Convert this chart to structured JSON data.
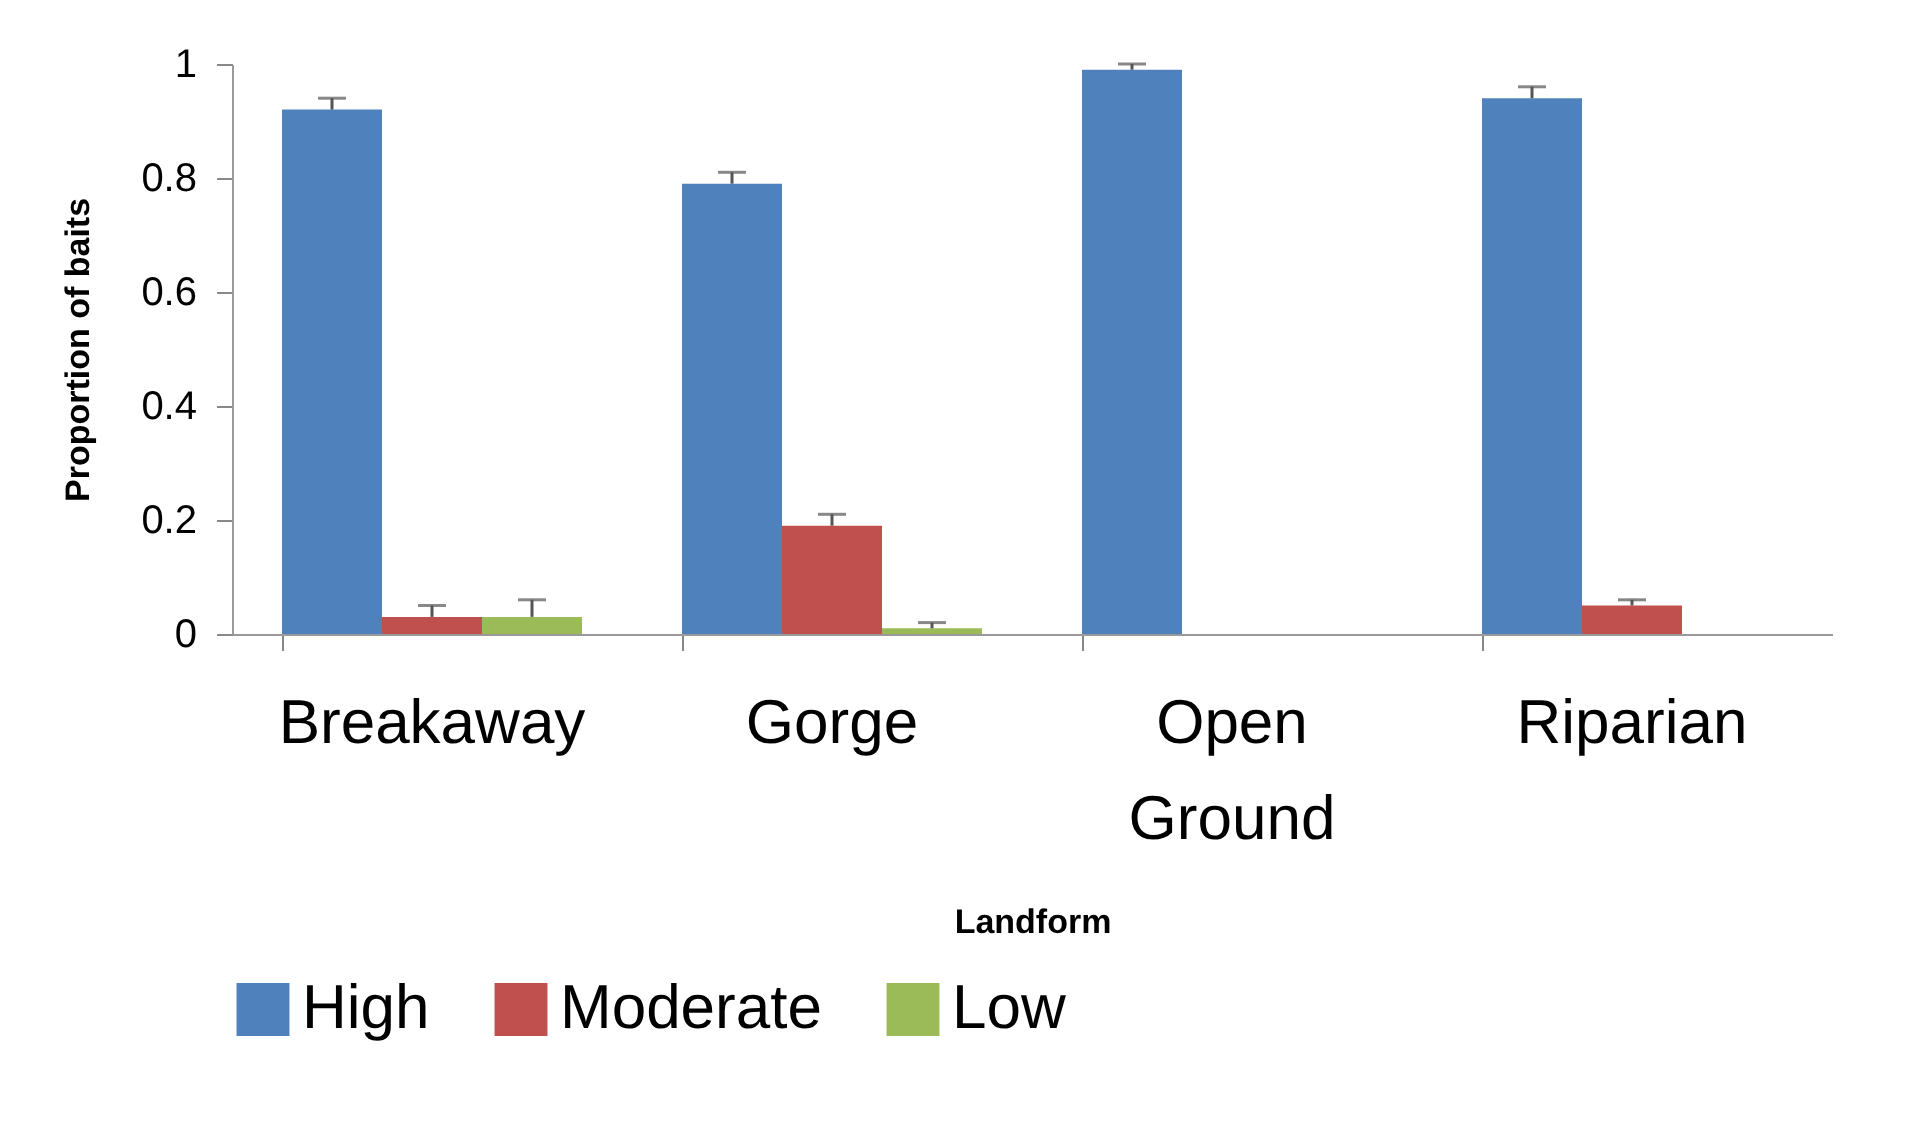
{
  "chart_data": {
    "type": "bar",
    "xlabel": "Landform",
    "ylabel": "Proportion of baits",
    "categories": [
      "Breakaway",
      "Gorge",
      "Open Ground",
      "Riparian"
    ],
    "series": [
      {
        "name": "High",
        "color": "#4f81bd",
        "values": [
          0.92,
          0.79,
          0.99,
          0.94
        ],
        "errors": [
          [
            0.92,
            0.94
          ],
          [
            0.79,
            0.81
          ],
          [
            0.99,
            1.0
          ],
          [
            0.94,
            0.96
          ]
        ]
      },
      {
        "name": "Moderate",
        "color": "#c0504d",
        "values": [
          0.03,
          0.19,
          0,
          0.05
        ],
        "errors": [
          [
            0.03,
            0.05
          ],
          [
            0.19,
            0.21
          ],
          null,
          [
            0.05,
            0.06
          ]
        ]
      },
      {
        "name": "Low",
        "color": "#9bbb59",
        "values": [
          0.03,
          0.01,
          0,
          0
        ],
        "errors": [
          [
            0.03,
            0.06
          ],
          [
            0.01,
            0.02
          ],
          null,
          null
        ]
      }
    ],
    "ylim": [
      0,
      1
    ],
    "yticks": [
      0,
      0.2,
      0.4,
      0.6,
      0.8,
      1
    ],
    "grid": false,
    "legend": "bottom"
  }
}
